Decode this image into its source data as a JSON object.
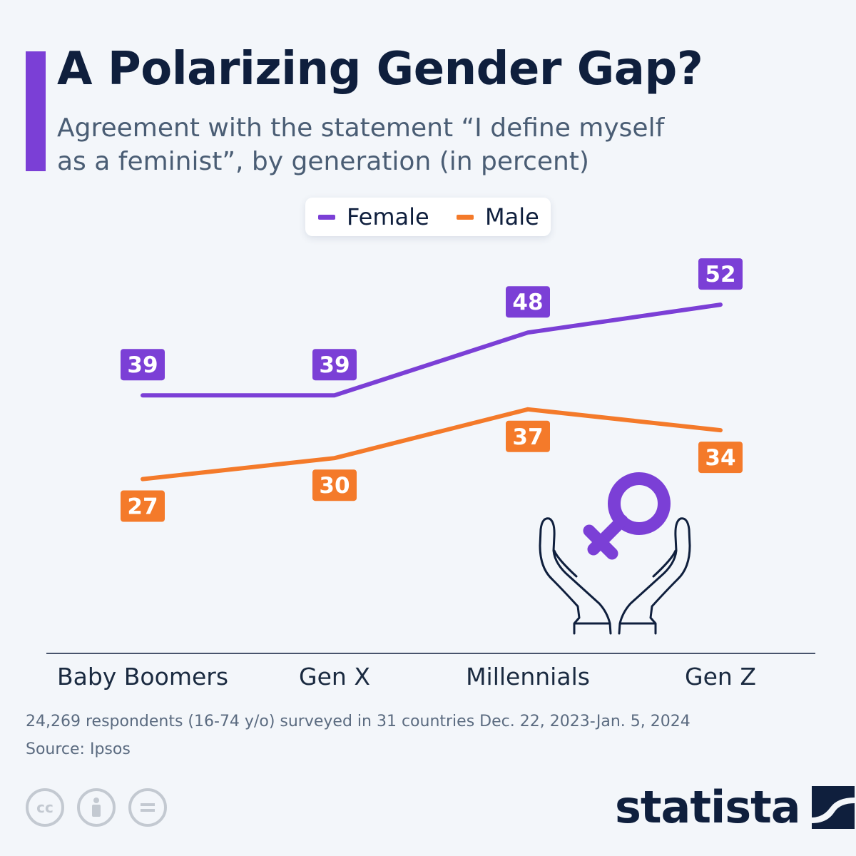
{
  "title": "A Polarizing Gender Gap?",
  "subtitle": "Agreement with the statement “I define myself as a feminist”, by generation (in percent)",
  "colors": {
    "female": "#7b3fd6",
    "male": "#f47a2a",
    "accent": "#7b3fd6",
    "text": "#0f1f3d"
  },
  "chart_data": {
    "type": "line",
    "categories": [
      "Baby Boomers",
      "Gen X",
      "Millennials",
      "Gen Z"
    ],
    "series": [
      {
        "name": "Female",
        "values": [
          39,
          39,
          48,
          52
        ],
        "color": "#7b3fd6",
        "label_position": "above"
      },
      {
        "name": "Male",
        "values": [
          27,
          30,
          37,
          34
        ],
        "color": "#f47a2a",
        "label_position": "below"
      }
    ],
    "ylim": [
      20,
      56
    ],
    "grid": false,
    "legend_position": "top-center",
    "data_labels": true
  },
  "illustration": "hands-holding-female-symbol-icon",
  "footer": {
    "note": "24,269 respondents (16-74 y/o) surveyed in 31 countries Dec. 22, 2023-Jan. 5, 2024",
    "source": "Source: Ipsos",
    "license_icons": [
      "cc-icon",
      "attribution-icon",
      "no-derivatives-icon"
    ],
    "brand": "statista"
  }
}
